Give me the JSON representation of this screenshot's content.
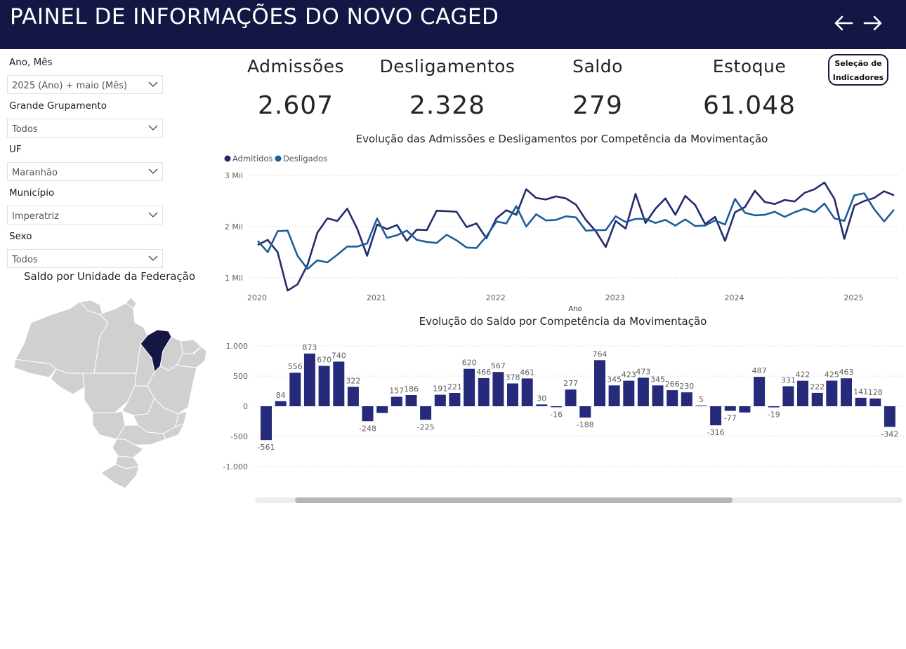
{
  "header": {
    "title": "PAINEL DE INFORMAÇÕES DO NOVO CAGED",
    "back_icon": "arrow-left-icon",
    "forward_icon": "arrow-right-icon"
  },
  "filters": [
    {
      "label": "Ano, Mês",
      "value": "2025 (Ano) + maio (Mês)"
    },
    {
      "label": "Grande Grupamento",
      "value": "Todos"
    },
    {
      "label": "UF",
      "value": "Maranhão"
    },
    {
      "label": "Município",
      "value": "Imperatriz"
    },
    {
      "label": "Sexo",
      "value": "Todos"
    }
  ],
  "kpis": [
    {
      "label": "Admissões",
      "value": "2.607"
    },
    {
      "label": "Desligamentos",
      "value": "2.328"
    },
    {
      "label": "Saldo",
      "value": "279"
    },
    {
      "label": "Estoque",
      "value": "61.048"
    }
  ],
  "selection_button": {
    "line1": "Seleção de",
    "line2": "Indicadores"
  },
  "map": {
    "title": "Saldo por Unidade da Federação",
    "highlighted_state": "Maranhão",
    "highlight_color": "#141744",
    "base_color": "#d0d0d0"
  },
  "colors": {
    "admitidos": "#252a6e",
    "desligados": "#1c5e99",
    "bars": "#252a7a",
    "header": "#141744"
  },
  "chart_data": [
    {
      "type": "line",
      "title": "Evolução das Admissões e Desligamentos por Competência da Movimentação",
      "xlabel": "Ano",
      "ylabel": "",
      "x_ticks": [
        "2020",
        "2021",
        "2022",
        "2023",
        "2024",
        "2025"
      ],
      "y_ticks": [
        "1 Mil",
        "2 Mil",
        "3 Mil"
      ],
      "ylim": [
        600,
        3000
      ],
      "legend_position": "top-left",
      "series": [
        {
          "name": "Admitidos",
          "values": [
            1640,
            1740,
            1500,
            750,
            870,
            1250,
            1880,
            2160,
            2110,
            2350,
            1960,
            1430,
            2040,
            1950,
            2030,
            1720,
            1940,
            1930,
            2310,
            2300,
            2290,
            1990,
            2060,
            1770,
            2160,
            2320,
            2230,
            2730,
            2560,
            2530,
            2590,
            2550,
            2430,
            2130,
            1910,
            1600,
            2110,
            1960,
            2640,
            2070,
            2350,
            2550,
            2230,
            2600,
            2420,
            2050,
            2190,
            1720,
            2280,
            2380,
            2700,
            2480,
            2440,
            2520,
            2490,
            2660,
            2730,
            2860,
            2540,
            1760,
            2410,
            2500,
            2560,
            2690,
            2610
          ]
        },
        {
          "name": "Desligados",
          "values": [
            1720,
            1500,
            1910,
            1920,
            1430,
            1170,
            1340,
            1300,
            1450,
            1610,
            1610,
            1670,
            2160,
            1780,
            1830,
            1920,
            1740,
            1700,
            1680,
            1840,
            1730,
            1590,
            1580,
            1810,
            2100,
            2060,
            2400,
            2000,
            2240,
            2120,
            2130,
            2200,
            2180,
            1920,
            1930,
            1930,
            2200,
            2090,
            2150,
            2150,
            2070,
            2130,
            2020,
            2140,
            2010,
            2020,
            2120,
            2040,
            2540,
            2270,
            2220,
            2230,
            2290,
            2190,
            2280,
            2350,
            2280,
            2450,
            2160,
            2110,
            2610,
            2650,
            2340,
            2100,
            2330
          ]
        }
      ]
    },
    {
      "type": "bar",
      "title": "Evolução do Saldo por Competência da Movimentação",
      "y_ticks": [
        "1.000",
        "500",
        "0",
        "-500",
        "-1.000"
      ],
      "ylim": [
        -1000,
        1000
      ],
      "values": [
        -561,
        84,
        556,
        873,
        670,
        740,
        322,
        -248,
        -112,
        157,
        186,
        -225,
        191,
        221,
        620,
        466,
        567,
        378,
        461,
        30,
        -16,
        277,
        -188,
        764,
        345,
        423,
        473,
        345,
        266,
        230,
        5,
        -316,
        -77,
        -104,
        487,
        -19,
        331,
        422,
        222,
        425,
        463,
        141,
        128,
        -342
      ],
      "labels": [
        "-561",
        "84",
        "556",
        "873",
        "670",
        "740",
        "322",
        "-248",
        "",
        "157",
        "186",
        "-225",
        "191",
        "221",
        "620",
        "466",
        "567",
        "378",
        "461",
        "30",
        "-16",
        "277",
        "-188",
        "764",
        "345",
        "423",
        "473",
        "345",
        "266",
        "230",
        "5",
        "-316",
        "-77",
        "",
        "487",
        "-19",
        "331",
        "422",
        "222",
        "425",
        "463",
        "141",
        "128",
        "-342"
      ]
    }
  ]
}
